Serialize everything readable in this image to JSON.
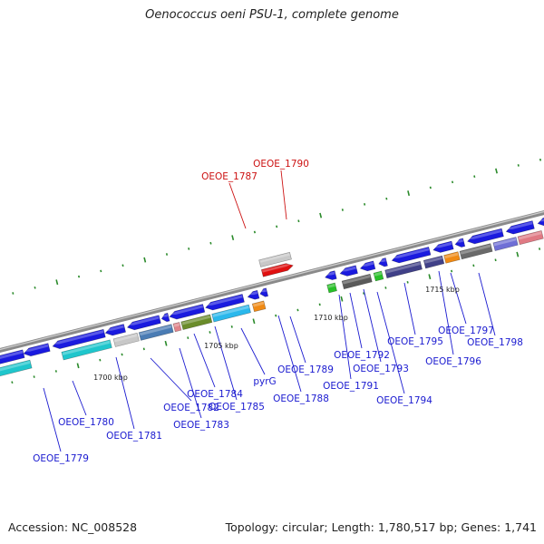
{
  "title": "Oenococcus oeni PSU-1, complete genome",
  "footer": {
    "accession": "Accession: NC_008528",
    "topology": "Topology: circular; Length: 1,780,517 bp; Genes: 1,741"
  },
  "colors": {
    "background": "#ffffff",
    "backbone": "#8a8a8a",
    "tick": "#2a8a2a",
    "label": "#1a1ad0",
    "highlight_label": "#cc1111",
    "coord_text": "#222222"
  },
  "coordinates": [
    {
      "text": "1700 kbp"
    },
    {
      "text": "1705 kbp"
    },
    {
      "text": "1710 kbp"
    },
    {
      "text": "1715 kbp"
    }
  ],
  "gene_labels": [
    {
      "text": "OEOE_1779",
      "color": "blue"
    },
    {
      "text": "OEOE_1780",
      "color": "blue"
    },
    {
      "text": "OEOE_1781",
      "color": "blue"
    },
    {
      "text": "OEOE_1782",
      "color": "blue"
    },
    {
      "text": "OEOE_1783",
      "color": "blue"
    },
    {
      "text": "OEOE_1784",
      "color": "blue"
    },
    {
      "text": "OEOE_1785",
      "color": "blue"
    },
    {
      "text": "pyrG",
      "color": "blue"
    },
    {
      "text": "OEOE_1788",
      "color": "blue"
    },
    {
      "text": "OEOE_1789",
      "color": "blue"
    },
    {
      "text": "OEOE_1791",
      "color": "blue"
    },
    {
      "text": "OEOE_1792",
      "color": "blue"
    },
    {
      "text": "OEOE_1793",
      "color": "blue"
    },
    {
      "text": "OEOE_1794",
      "color": "blue"
    },
    {
      "text": "OEOE_1795",
      "color": "blue"
    },
    {
      "text": "OEOE_1796",
      "color": "blue"
    },
    {
      "text": "OEOE_1797",
      "color": "blue"
    },
    {
      "text": "OEOE_1798",
      "color": "blue"
    },
    {
      "text": "OEOE_1787",
      "color": "red"
    },
    {
      "text": "OEOE_1790",
      "color": "red"
    }
  ]
}
